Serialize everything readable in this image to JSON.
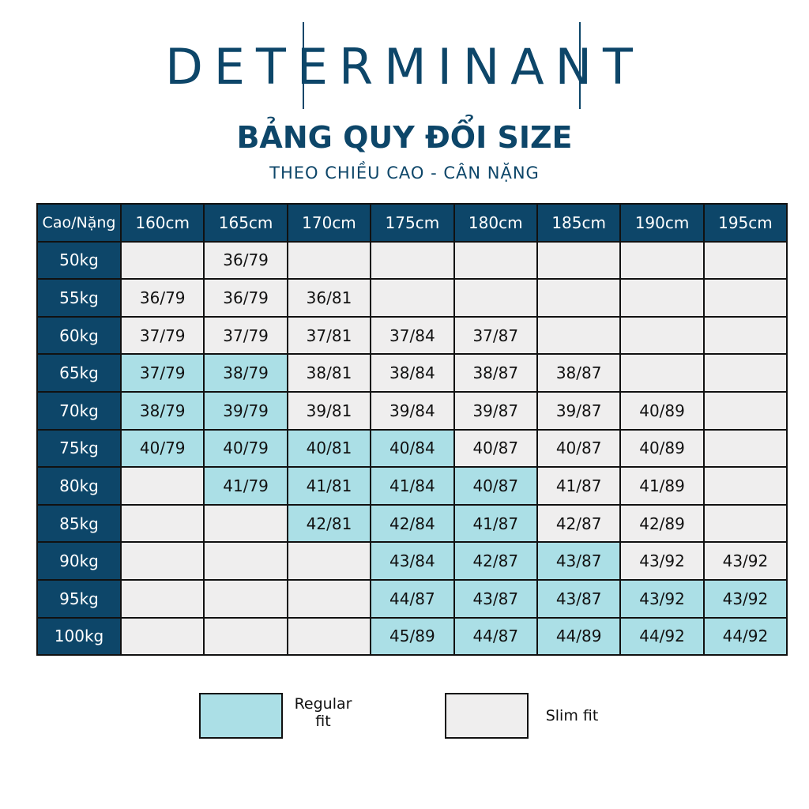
{
  "brand": "DETERMINANT",
  "title": "BẢNG QUY ĐỔI SIZE",
  "subtitle": "THEO CHIỀU CAO - CÂN NẶNG",
  "colors": {
    "header": "#0d4669",
    "regular": "#abdfe6",
    "slim": "#efeeee"
  },
  "table": {
    "header": [
      "Cao/Nặng",
      "160cm",
      "165cm",
      "170cm",
      "175cm",
      "180cm",
      "185cm",
      "190cm",
      "195cm"
    ],
    "rows": [
      {
        "label": "50kg",
        "cells": [
          null,
          "36/79",
          null,
          null,
          null,
          null,
          null,
          null
        ],
        "fits": [
          "slim",
          "slim",
          "slim",
          "slim",
          "slim",
          "slim",
          "slim",
          "slim"
        ]
      },
      {
        "label": "55kg",
        "cells": [
          "36/79",
          "36/79",
          "36/81",
          null,
          null,
          null,
          null,
          null
        ],
        "fits": [
          "slim",
          "slim",
          "slim",
          "slim",
          "slim",
          "slim",
          "slim",
          "slim"
        ]
      },
      {
        "label": "60kg",
        "cells": [
          "37/79",
          "37/79",
          "37/81",
          "37/84",
          "37/87",
          null,
          null,
          null
        ],
        "fits": [
          "slim",
          "slim",
          "slim",
          "slim",
          "slim",
          "slim",
          "slim",
          "slim"
        ]
      },
      {
        "label": "65kg",
        "cells": [
          "37/79",
          "38/79",
          "38/81",
          "38/84",
          "38/87",
          "38/87",
          null,
          null
        ],
        "fits": [
          "regular",
          "regular",
          "slim",
          "slim",
          "slim",
          "slim",
          "slim",
          "slim"
        ]
      },
      {
        "label": "70kg",
        "cells": [
          "38/79",
          "39/79",
          "39/81",
          "39/84",
          "39/87",
          "39/87",
          "40/89",
          null
        ],
        "fits": [
          "regular",
          "regular",
          "slim",
          "slim",
          "slim",
          "slim",
          "slim",
          "slim"
        ]
      },
      {
        "label": "75kg",
        "cells": [
          "40/79",
          "40/79",
          "40/81",
          "40/84",
          "40/87",
          "40/87",
          "40/89",
          null
        ],
        "fits": [
          "regular",
          "regular",
          "regular",
          "regular",
          "slim",
          "slim",
          "slim",
          "slim"
        ]
      },
      {
        "label": "80kg",
        "cells": [
          null,
          "41/79",
          "41/81",
          "41/84",
          "40/87",
          "41/87",
          "41/89",
          null
        ],
        "fits": [
          "slim",
          "regular",
          "regular",
          "regular",
          "regular",
          "slim",
          "slim",
          "slim"
        ]
      },
      {
        "label": "85kg",
        "cells": [
          null,
          null,
          "42/81",
          "42/84",
          "41/87",
          "42/87",
          "42/89",
          null
        ],
        "fits": [
          "slim",
          "slim",
          "regular",
          "regular",
          "regular",
          "slim",
          "slim",
          "slim"
        ]
      },
      {
        "label": "90kg",
        "cells": [
          null,
          null,
          null,
          "43/84",
          "42/87",
          "43/87",
          "43/92",
          "43/92"
        ],
        "fits": [
          "slim",
          "slim",
          "slim",
          "regular",
          "regular",
          "regular",
          "slim",
          "slim"
        ]
      },
      {
        "label": "95kg",
        "cells": [
          null,
          null,
          null,
          "44/87",
          "43/87",
          "43/87",
          "43/92",
          "43/92"
        ],
        "fits": [
          "slim",
          "slim",
          "slim",
          "regular",
          "regular",
          "regular",
          "regular",
          "regular"
        ]
      },
      {
        "label": "100kg",
        "cells": [
          null,
          null,
          null,
          "45/89",
          "44/87",
          "44/89",
          "44/92",
          "44/92"
        ],
        "fits": [
          "slim",
          "slim",
          "slim",
          "regular",
          "regular",
          "regular",
          "regular",
          "regular"
        ]
      }
    ]
  },
  "legend": [
    {
      "fit": "regular",
      "label": "Regular fit"
    },
    {
      "fit": "slim",
      "label": "Slim fit"
    }
  ]
}
